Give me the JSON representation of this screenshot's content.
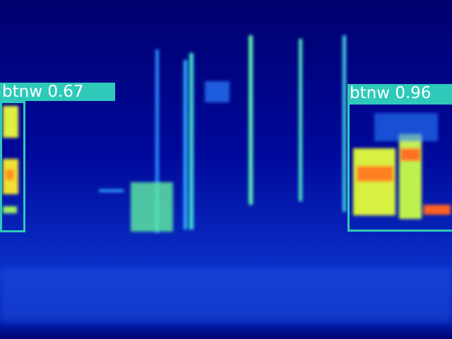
{
  "detections": [
    {
      "label": "btnw 0.67"
    },
    {
      "label": "btnw 0.96"
    }
  ]
}
